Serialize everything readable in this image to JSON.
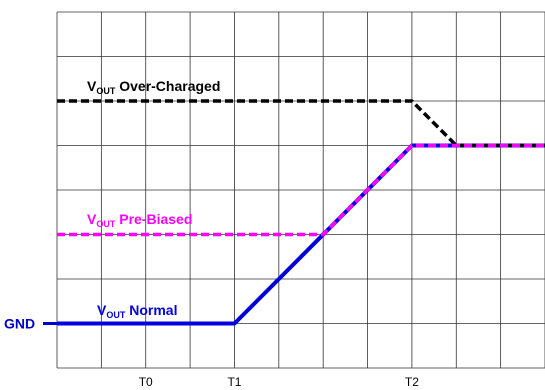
{
  "chart_data": {
    "type": "line",
    "grid": true,
    "xlim": [
      0,
      11
    ],
    "ylim": [
      0,
      8
    ],
    "x_ticks": [
      {
        "x": 2,
        "label": "T0"
      },
      {
        "x": 4,
        "label": "T1"
      },
      {
        "x": 8,
        "label": "T2"
      }
    ],
    "y_marker": {
      "y": 1,
      "label": "GND",
      "color": "#0000cc"
    },
    "series": [
      {
        "name_main": "V",
        "name_sub": "OUT",
        "name_rest": " Normal",
        "color": "#0000dd",
        "style": "solid",
        "points": [
          [
            0,
            1
          ],
          [
            4,
            1
          ],
          [
            8,
            5
          ],
          [
            11,
            5
          ]
        ]
      },
      {
        "name_main": "V",
        "name_sub": "OUT",
        "name_rest": " Pre-Biased",
        "color": "#ff00ff",
        "style": "dashed",
        "points": [
          [
            0,
            3
          ],
          [
            6,
            3
          ],
          [
            8,
            5
          ],
          [
            11,
            5
          ]
        ]
      },
      {
        "name_main": "V",
        "name_sub": "OUT",
        "name_rest": " Over-Charaged",
        "color": "#000000",
        "style": "dashed",
        "points": [
          [
            0,
            6
          ],
          [
            8,
            6
          ],
          [
            9,
            5
          ],
          [
            11,
            5
          ]
        ]
      }
    ]
  }
}
